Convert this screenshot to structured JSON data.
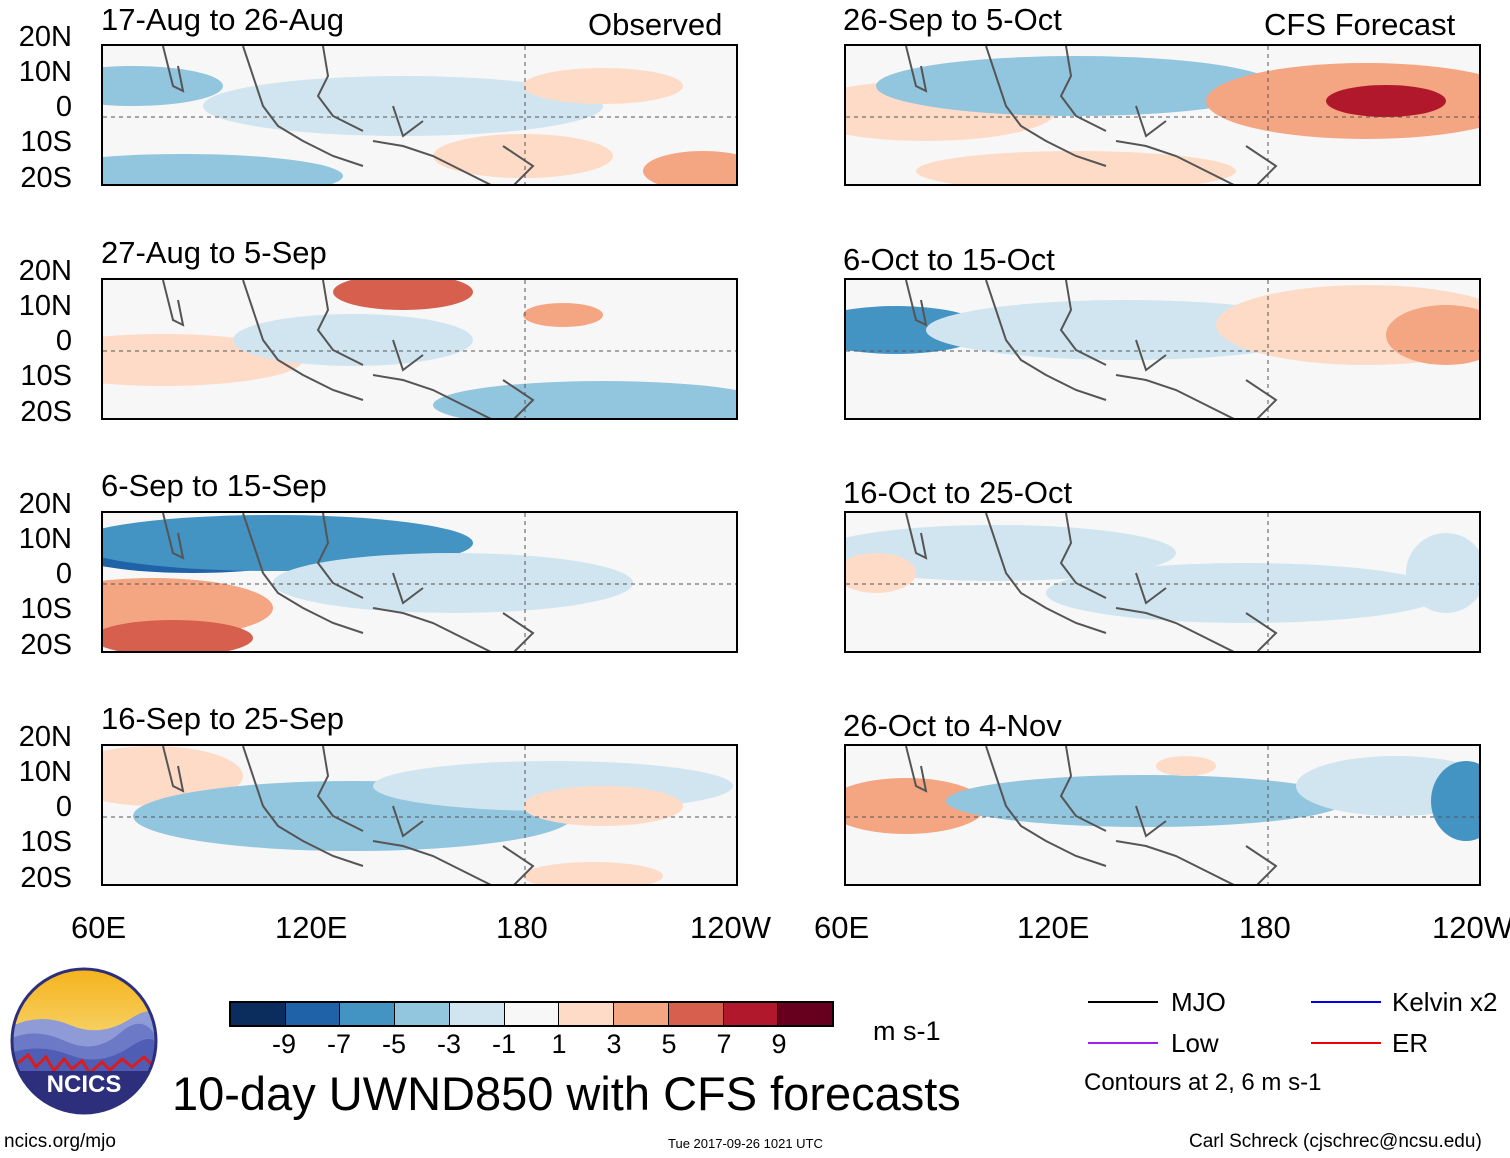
{
  "header": {
    "observed_label": "Observed",
    "forecast_label": "CFS Forecast"
  },
  "panels": {
    "observed": [
      {
        "title": "17-Aug to 26-Aug"
      },
      {
        "title": "27-Aug to 5-Sep"
      },
      {
        "title": "6-Sep to 15-Sep"
      },
      {
        "title": "16-Sep to 25-Sep"
      }
    ],
    "forecast": [
      {
        "title": "26-Sep to 5-Oct"
      },
      {
        "title": "6-Oct to 15-Oct"
      },
      {
        "title": "16-Oct to 25-Oct"
      },
      {
        "title": "26-Oct to 4-Nov"
      }
    ]
  },
  "axes": {
    "lat_ticks": [
      "20N",
      "10N",
      "0",
      "10S",
      "20S"
    ],
    "lon_ticks": [
      "60E",
      "120E",
      "180",
      "120W"
    ]
  },
  "colorbar": {
    "ticks": [
      "-9",
      "-7",
      "-5",
      "-3",
      "-1",
      "1",
      "3",
      "5",
      "7",
      "9"
    ],
    "units": "m s-1",
    "colors": [
      "#0a2d5e",
      "#1f62a8",
      "#4393c3",
      "#92c5de",
      "#d1e5f0",
      "#f7f7f7",
      "#fddbc7",
      "#f4a582",
      "#d6604d",
      "#b2182b",
      "#67001f"
    ]
  },
  "legend": {
    "items": [
      {
        "label": "MJO",
        "color": "#000000"
      },
      {
        "label": "Kelvin x2",
        "color": "#0000ee"
      },
      {
        "label": "Low",
        "color": "#a020f0"
      },
      {
        "label": "ER",
        "color": "#ee0000"
      }
    ],
    "contours_note": "Contours at 2, 6 m s-1"
  },
  "logo": {
    "text": "NCICS"
  },
  "main_title": "10-day UWND850 with CFS forecasts",
  "footer": {
    "url": "ncics.org/mjo",
    "timestamp": "Tue 2017-09-26 1021 UTC",
    "author": "Carl Schreck (cjschrec@ncsu.edu)"
  }
}
